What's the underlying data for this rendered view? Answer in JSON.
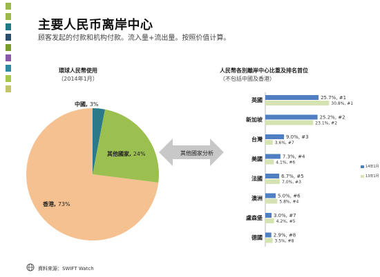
{
  "title": "主要人民币离岸中心",
  "subtitle": "顾客发起的付款和机构付款。流入量+流出量。按照价值计算。",
  "footer": "資料來源：SWIFT Watch",
  "colors": {
    "swatches": [
      "#9bb84a",
      "#9bb84a",
      "#1f7a85",
      "#2a4f6b",
      "#7a9c2a",
      "#8a5aa8",
      "#2d8aa0",
      "#a6c74a",
      "#c2c56a"
    ],
    "pie": [
      "#2a7a8a",
      "#9cc050",
      "#f5c190"
    ],
    "series": [
      "#4f7fc0",
      "#d5e2b2"
    ],
    "arrow": "#c8c8c8"
  },
  "chart_data": [
    {
      "type": "pie",
      "title": "環球人民幣使用",
      "subtitle": "（2014年1月）",
      "slices": [
        {
          "label": "中國",
          "value": 3,
          "value_label": "3%"
        },
        {
          "label": "其他國家",
          "value": 24,
          "value_label": "24%"
        },
        {
          "label": "香港",
          "value": 73,
          "value_label": "73%"
        }
      ]
    },
    {
      "type": "bar",
      "orientation": "horizontal",
      "title": "人民幣各別離岸中心比重及排名首位",
      "subtitle": "（不包括中國及香港）",
      "categories": [
        "英國",
        "新加坡",
        "台灣",
        "美國",
        "法國",
        "澳洲",
        "盧森堡",
        "德國"
      ],
      "series": [
        {
          "name": "14年1月",
          "values": [
            25.7,
            25.2,
            9.0,
            7.3,
            6.7,
            5.0,
            3.0,
            2.9
          ],
          "labels": [
            "25.7%, #1",
            "25.2%, #2",
            "9.0%, #3",
            "7.3%, #4",
            "6.7%, #5",
            "5.0%, #6",
            "3.0%, #7",
            "2.9%, #8"
          ]
        },
        {
          "name": "13年1月",
          "values": [
            30.8,
            23.1,
            3.6,
            4.1,
            7.0,
            5.8,
            4.2,
            3.5
          ],
          "labels": [
            "30.8%, #1",
            "23.1%, #2",
            "3.6%, #7",
            "4.1%, #6",
            "7.0%, #3",
            "5.8%, #4",
            "4.2%, #5",
            "3.5%, #8"
          ]
        }
      ],
      "arrow_label": "其他國家分析"
    }
  ]
}
